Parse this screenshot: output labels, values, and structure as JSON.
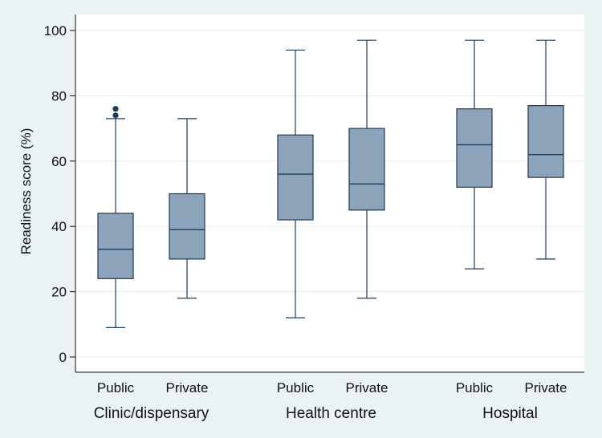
{
  "chart_data": {
    "type": "boxplot",
    "title": "",
    "ylabel": "Readiness score (%)",
    "ylim": [
      0,
      100
    ],
    "yticks": [
      0,
      20,
      40,
      60,
      80,
      100
    ],
    "grid": true,
    "groups": [
      {
        "label": "Clinic/dispensary",
        "boxes": [
          {
            "label": "Public",
            "min": 9,
            "q1": 24,
            "median": 33,
            "q3": 44,
            "max": 73,
            "outliers": [
              74,
              76
            ]
          },
          {
            "label": "Private",
            "min": 18,
            "q1": 30,
            "median": 39,
            "q3": 50,
            "max": 73,
            "outliers": []
          }
        ]
      },
      {
        "label": "Health centre",
        "boxes": [
          {
            "label": "Public",
            "min": 12,
            "q1": 42,
            "median": 56,
            "q3": 68,
            "max": 94,
            "outliers": []
          },
          {
            "label": "Private",
            "min": 18,
            "q1": 45,
            "median": 53,
            "q3": 70,
            "max": 97,
            "outliers": []
          }
        ]
      },
      {
        "label": "Hospital",
        "boxes": [
          {
            "label": "Public",
            "min": 27,
            "q1": 52,
            "median": 65,
            "q3": 76,
            "max": 97,
            "outliers": []
          },
          {
            "label": "Private",
            "min": 30,
            "q1": 55,
            "median": 62,
            "q3": 77,
            "max": 97,
            "outliers": []
          }
        ]
      }
    ],
    "colors": {
      "background": "#eaf2f3",
      "plot_background": "#ffffff",
      "grid": "#e8eff0",
      "box_fill": "#8da3b9",
      "box_line": "#1d3b57",
      "outlier": "#1d3b57",
      "axis": "#111111"
    }
  }
}
